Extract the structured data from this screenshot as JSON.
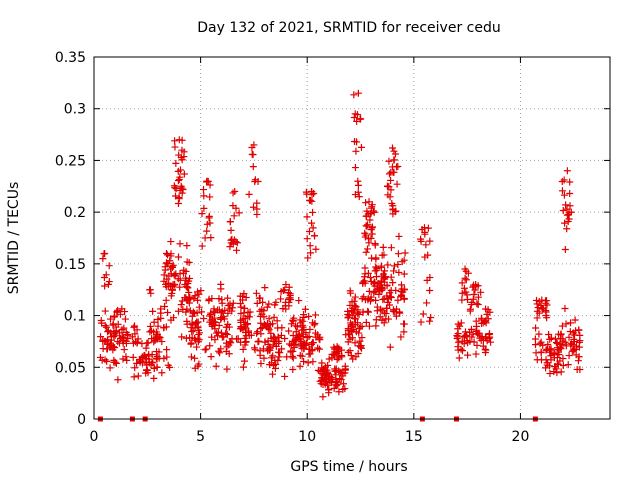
{
  "chart_data": {
    "type": "scatter",
    "title": "Day 132 of 2021, SRMTID for receiver cedu",
    "xlabel": "GPS time / hours",
    "ylabel": "SRMTID / TECUs",
    "xlim": [
      0,
      24.2
    ],
    "ylim": [
      0,
      0.35
    ],
    "xticks": [
      0,
      5,
      10,
      15,
      20
    ],
    "xtick_labels": [
      "0",
      "5",
      "10",
      "15",
      "20"
    ],
    "yticks": [
      0,
      0.05,
      0.1,
      0.15,
      0.2,
      0.25,
      0.3,
      0.35
    ],
    "ytick_labels": [
      "0",
      "0.05",
      "0.1",
      "0.15",
      "0.2",
      "0.25",
      "0.3",
      "0.35"
    ],
    "grid": true,
    "marker": "+",
    "color": "#e00000",
    "zero_markers_x": [
      0.3,
      1.8,
      2.4,
      15.4,
      17.0,
      20.7
    ],
    "clusters": [
      {
        "start": 0.3,
        "end": 1.6,
        "base": 0.08,
        "spread": 0.03,
        "peak_at": 0.5,
        "peak": 0.16,
        "density": 90
      },
      {
        "start": 1.8,
        "end": 2.6,
        "base": 0.055,
        "spread": 0.02,
        "peak_at": 1.9,
        "peak": 0.09,
        "density": 40
      },
      {
        "start": 2.6,
        "end": 3.6,
        "base": 0.08,
        "spread": 0.035,
        "peak_at": 3.4,
        "peak": 0.16,
        "density": 70
      },
      {
        "start": 3.6,
        "end": 4.5,
        "base": 0.12,
        "spread": 0.045,
        "peak_at": 4.0,
        "peak": 0.27,
        "density": 90
      },
      {
        "start": 4.5,
        "end": 5.5,
        "base": 0.09,
        "spread": 0.035,
        "peak_at": 5.3,
        "peak": 0.23,
        "density": 70
      },
      {
        "start": 5.5,
        "end": 7.0,
        "base": 0.09,
        "spread": 0.035,
        "peak_at": 6.6,
        "peak": 0.22,
        "density": 100
      },
      {
        "start": 7.0,
        "end": 8.2,
        "base": 0.09,
        "spread": 0.035,
        "peak_at": 7.5,
        "peak": 0.265,
        "density": 80
      },
      {
        "start": 8.2,
        "end": 9.6,
        "base": 0.075,
        "spread": 0.03,
        "peak_at": 9.0,
        "peak": 0.13,
        "density": 90
      },
      {
        "start": 9.6,
        "end": 10.6,
        "base": 0.075,
        "spread": 0.03,
        "peak_at": 10.2,
        "peak": 0.22,
        "density": 80
      },
      {
        "start": 10.6,
        "end": 11.8,
        "base": 0.04,
        "spread": 0.015,
        "peak_at": 11.4,
        "peak": 0.07,
        "density": 90
      },
      {
        "start": 11.8,
        "end": 12.6,
        "base": 0.09,
        "spread": 0.03,
        "peak_at": 12.4,
        "peak": 0.315,
        "density": 80
      },
      {
        "start": 12.6,
        "end": 13.6,
        "base": 0.13,
        "spread": 0.04,
        "peak_at": 12.9,
        "peak": 0.21,
        "density": 100
      },
      {
        "start": 13.6,
        "end": 14.6,
        "base": 0.12,
        "spread": 0.04,
        "peak_at": 14.0,
        "peak": 0.262,
        "density": 90
      },
      {
        "start": 15.3,
        "end": 15.8,
        "base": 0.12,
        "spread": 0.04,
        "peak_at": 15.5,
        "peak": 0.185,
        "density": 18
      },
      {
        "start": 17.0,
        "end": 17.6,
        "base": 0.075,
        "spread": 0.02,
        "peak_at": 17.4,
        "peak": 0.145,
        "density": 35
      },
      {
        "start": 17.6,
        "end": 18.6,
        "base": 0.085,
        "spread": 0.025,
        "peak_at": 17.9,
        "peak": 0.13,
        "density": 60
      },
      {
        "start": 20.7,
        "end": 21.8,
        "base": 0.065,
        "spread": 0.02,
        "peak_at": 21.0,
        "peak": 0.115,
        "density": 70
      },
      {
        "start": 21.8,
        "end": 22.8,
        "base": 0.07,
        "spread": 0.025,
        "peak_at": 22.2,
        "peak": 0.24,
        "density": 70
      }
    ]
  }
}
